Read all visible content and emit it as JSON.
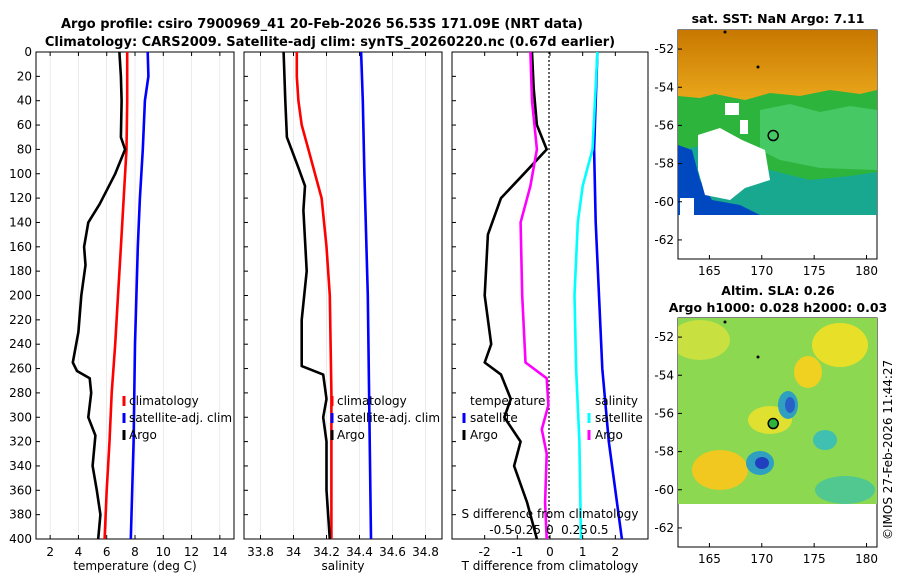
{
  "header": {
    "title_line1": "Argo profile: csiro 7900969_41 20-Feb-2026 56.53S 171.09E (NRT data)",
    "title_line2": "Climatology: CARS2009. Satellite-adj clim: synTS_20260220.nc (0.67d earlier)",
    "watermark": "©IMOS 27-Feb-2026 11:44:27"
  },
  "colors": {
    "argo": "#000000",
    "climatology": "#ff0000",
    "satellite_adj": "#0000ff",
    "salinity_satellite": "#00ffff",
    "salinity_argo": "#ff00ff"
  },
  "chart_data": [
    {
      "type": "line",
      "id": "temperature",
      "xlabel": "temperature (deg C)",
      "ylabel": "",
      "xlim": [
        1,
        15
      ],
      "ylim": [
        400,
        0
      ],
      "xticks": [
        2,
        4,
        6,
        8,
        10,
        12,
        14
      ],
      "yticks": [
        0,
        20,
        40,
        60,
        80,
        100,
        120,
        140,
        160,
        180,
        200,
        220,
        240,
        260,
        280,
        300,
        320,
        340,
        360,
        380,
        400
      ],
      "legend": [
        "climatology",
        "satellite-adj. clim",
        "Argo"
      ],
      "series": [
        {
          "name": "climatology",
          "color": "#ff0000",
          "points": [
            [
              7.45,
              0
            ],
            [
              7.45,
              40
            ],
            [
              7.4,
              80
            ],
            [
              7.2,
              120
            ],
            [
              7.0,
              160
            ],
            [
              6.8,
              200
            ],
            [
              6.6,
              240
            ],
            [
              6.35,
              280
            ],
            [
              6.2,
              320
            ],
            [
              6.0,
              360
            ],
            [
              5.85,
              400
            ]
          ]
        },
        {
          "name": "satellite-adj. clim",
          "color": "#0000ff",
          "points": [
            [
              8.9,
              0
            ],
            [
              8.95,
              20
            ],
            [
              8.7,
              40
            ],
            [
              8.55,
              80
            ],
            [
              8.35,
              120
            ],
            [
              8.2,
              160
            ],
            [
              8.1,
              200
            ],
            [
              8.0,
              240
            ],
            [
              7.95,
              280
            ],
            [
              7.9,
              320
            ],
            [
              7.8,
              360
            ],
            [
              7.7,
              400
            ]
          ]
        },
        {
          "name": "Argo",
          "color": "#000000",
          "points": [
            [
              6.9,
              0
            ],
            [
              7.0,
              20
            ],
            [
              7.05,
              40
            ],
            [
              7.0,
              70
            ],
            [
              7.3,
              80
            ],
            [
              6.6,
              100
            ],
            [
              5.5,
              125
            ],
            [
              4.7,
              140
            ],
            [
              4.4,
              160
            ],
            [
              4.5,
              175
            ],
            [
              4.2,
              200
            ],
            [
              4.0,
              230
            ],
            [
              3.6,
              255
            ],
            [
              3.9,
              262
            ],
            [
              4.8,
              268
            ],
            [
              4.9,
              280
            ],
            [
              4.7,
              300
            ],
            [
              5.2,
              315
            ],
            [
              5.0,
              340
            ],
            [
              5.3,
              360
            ],
            [
              5.55,
              380
            ],
            [
              5.4,
              400
            ]
          ]
        }
      ]
    },
    {
      "type": "line",
      "id": "salinity",
      "xlabel": "salinity",
      "xlim": [
        33.7,
        34.9
      ],
      "ylim": [
        400,
        0
      ],
      "xticks": [
        33.8,
        34,
        34.2,
        34.4,
        34.6,
        34.8
      ],
      "legend": [
        "climatology",
        "satellite-adj. clim",
        "Argo"
      ],
      "series": [
        {
          "name": "climatology",
          "color": "#ff0000",
          "points": [
            [
              34.02,
              0
            ],
            [
              34.02,
              20
            ],
            [
              34.03,
              40
            ],
            [
              34.05,
              60
            ],
            [
              34.09,
              80
            ],
            [
              34.13,
              100
            ],
            [
              34.17,
              120
            ],
            [
              34.2,
              160
            ],
            [
              34.22,
              200
            ],
            [
              34.23,
              280
            ],
            [
              34.23,
              400
            ]
          ]
        },
        {
          "name": "satellite-adj. clim",
          "color": "#0000ff",
          "points": [
            [
              34.41,
              0
            ],
            [
              34.42,
              40
            ],
            [
              34.43,
              100
            ],
            [
              34.45,
              200
            ],
            [
              34.46,
              300
            ],
            [
              34.47,
              400
            ]
          ]
        },
        {
          "name": "Argo",
          "color": "#000000",
          "points": [
            [
              33.94,
              0
            ],
            [
              33.95,
              40
            ],
            [
              33.96,
              70
            ],
            [
              34.03,
              95
            ],
            [
              34.07,
              110
            ],
            [
              34.06,
              130
            ],
            [
              34.08,
              180
            ],
            [
              34.05,
              220
            ],
            [
              34.05,
              258
            ],
            [
              34.18,
              265
            ],
            [
              34.2,
              285
            ],
            [
              34.18,
              300
            ],
            [
              34.2,
              320
            ],
            [
              34.2,
              360
            ],
            [
              34.22,
              400
            ]
          ]
        }
      ]
    },
    {
      "type": "line",
      "id": "difference",
      "xlabel": "T difference from climatology",
      "xlabel_top": "S difference from climatology",
      "xlim": [
        -3,
        3
      ],
      "ylim": [
        400,
        0
      ],
      "xticks": [
        -2,
        -1,
        0,
        1,
        2
      ],
      "xticklabels": [
        "-2",
        "-1",
        "0",
        "1",
        "2"
      ],
      "xticks_top": [
        "-0.5",
        "-0.25",
        "0",
        "0.25",
        "0.5"
      ],
      "legend_left_title": "temperature",
      "legend_right_title": "salinity",
      "legend_left": [
        "satellite",
        "Argo"
      ],
      "legend_right": [
        "satellite",
        "Argo"
      ],
      "legend_left_colors": [
        "#0000ff",
        "#000000"
      ],
      "legend_right_colors": [
        "#00ffff",
        "#ff00ff"
      ],
      "series": [
        {
          "name": "T satellite",
          "color": "#0000ff",
          "points": [
            [
              1.45,
              0
            ],
            [
              1.4,
              40
            ],
            [
              1.35,
              80
            ],
            [
              1.4,
              140
            ],
            [
              1.5,
              200
            ],
            [
              1.6,
              260
            ],
            [
              1.8,
              320
            ],
            [
              2.1,
              380
            ],
            [
              2.2,
              400
            ]
          ]
        },
        {
          "name": "T Argo",
          "color": "#000000",
          "points": [
            [
              -0.55,
              0
            ],
            [
              -0.5,
              30
            ],
            [
              -0.4,
              60
            ],
            [
              -0.1,
              80
            ],
            [
              -0.8,
              100
            ],
            [
              -1.5,
              120
            ],
            [
              -1.9,
              150
            ],
            [
              -2.0,
              200
            ],
            [
              -1.8,
              240
            ],
            [
              -2.0,
              255
            ],
            [
              -1.5,
              265
            ],
            [
              -1.2,
              285
            ],
            [
              -1.4,
              300
            ],
            [
              -0.9,
              320
            ],
            [
              -1.1,
              340
            ],
            [
              -0.7,
              370
            ],
            [
              -0.4,
              400
            ]
          ]
        },
        {
          "name": "S satellite",
          "color": "#00ffff",
          "points": [
            [
              1.45,
              0
            ],
            [
              1.3,
              80
            ],
            [
              1.0,
              110
            ],
            [
              0.85,
              140
            ],
            [
              0.75,
              200
            ],
            [
              0.8,
              260
            ],
            [
              0.9,
              320
            ],
            [
              0.95,
              400
            ]
          ]
        },
        {
          "name": "S Argo",
          "color": "#ff00ff",
          "points": [
            [
              -0.6,
              0
            ],
            [
              -0.55,
              40
            ],
            [
              -0.4,
              80
            ],
            [
              -0.6,
              110
            ],
            [
              -0.9,
              140
            ],
            [
              -0.85,
              200
            ],
            [
              -0.75,
              255
            ],
            [
              -0.1,
              268
            ],
            [
              -0.05,
              290
            ],
            [
              -0.25,
              310
            ],
            [
              -0.1,
              330
            ],
            [
              -0.15,
              370
            ],
            [
              -0.1,
              400
            ]
          ]
        }
      ]
    },
    {
      "type": "heatmap",
      "id": "sst_map",
      "title": "sat. SST: NaN Argo: 7.11",
      "xlim": [
        162,
        181
      ],
      "ylim": [
        -63,
        -51
      ],
      "xticks": [
        165,
        170,
        175,
        180
      ],
      "yticks": [
        -52,
        -54,
        -56,
        -58,
        -60,
        -62
      ],
      "argo_position": [
        171.09,
        -56.53
      ]
    },
    {
      "type": "heatmap",
      "id": "sla_map",
      "title_line1": "Altim. SLA: 0.26",
      "title_line2": "Argo h1000: 0.028 h2000: 0.03",
      "xlim": [
        162,
        181
      ],
      "ylim": [
        -63,
        -51
      ],
      "xticks": [
        165,
        170,
        175,
        180
      ],
      "yticks": [
        -52,
        -54,
        -56,
        -58,
        -60,
        -62
      ],
      "argo_position": [
        171.09,
        -56.53
      ]
    }
  ]
}
